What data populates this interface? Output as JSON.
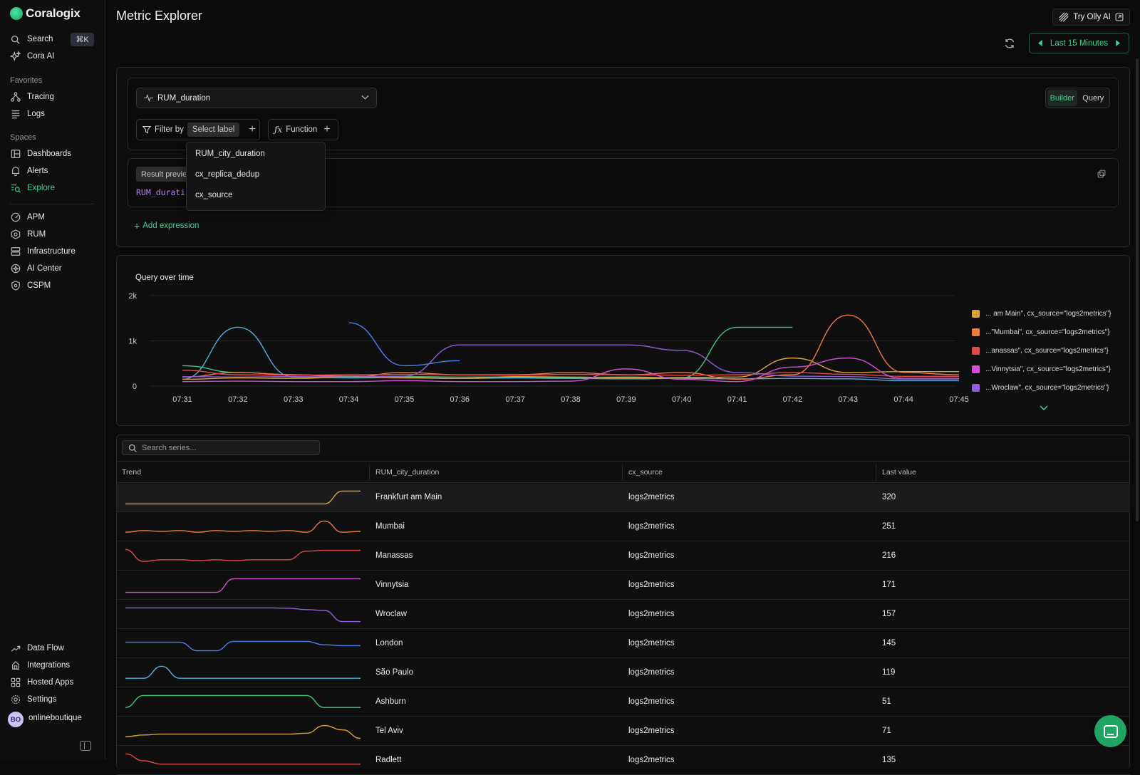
{
  "sidebar": {
    "brand": "Coralogix",
    "search_label": "Search",
    "search_shortcut": "⌘K",
    "cora_label": "Cora AI",
    "favorites_title": "Favorites",
    "favorites": [
      "Tracing",
      "Logs"
    ],
    "spaces_title": "Spaces",
    "spaces": [
      "Dashboards",
      "Alerts",
      "Explore"
    ],
    "products": [
      "APM",
      "RUM",
      "Infrastructure",
      "AI Center",
      "CSPM"
    ],
    "bottom": [
      "Data Flow",
      "Integrations",
      "Hosted Apps",
      "Settings"
    ],
    "avatar_initials": "BO",
    "org_name": "onlineboutique"
  },
  "header": {
    "title": "Metric Explorer",
    "olly_label": "Try Olly AI",
    "time_range": "Last 15 Minutes"
  },
  "query": {
    "metric": "RUM_duration",
    "filter_label": "Filter by",
    "select_label": "Select label",
    "function_label": "Function",
    "builder_label": "Builder",
    "query_label": "Query",
    "result_preview": "Result previe",
    "result_code": "RUM_duratio",
    "add_expression": "Add expression",
    "dropdown_options": [
      "RUM_city_duration",
      "cx_replica_dedup",
      "cx_source"
    ]
  },
  "chart_data": {
    "type": "line",
    "title": "Query over time",
    "x": [
      "07:31",
      "07:32",
      "07:33",
      "07:34",
      "07:35",
      "07:36",
      "07:37",
      "07:38",
      "07:39",
      "07:40",
      "07:41",
      "07:42",
      "07:43",
      "07:44",
      "07:45"
    ],
    "yticks": [
      "2k",
      "1k",
      "0"
    ],
    "ylim": [
      0,
      2000
    ],
    "legend_position": "right",
    "series": [
      {
        "name": "... am Main\", cx_source=\"logs2metrics\"}",
        "color": "#d9a33a",
        "values": [
          150,
          180,
          170,
          200,
          180,
          170,
          210,
          200,
          180,
          190,
          200,
          620,
          300,
          320,
          320
        ]
      },
      {
        "name": "...\"Mumbai\", cx_source=\"logs2metrics\"}",
        "color": "#ee7a3c",
        "values": [
          200,
          300,
          250,
          200,
          300,
          250,
          250,
          300,
          250,
          300,
          150,
          250,
          1570,
          300,
          251
        ]
      },
      {
        "name": "...anassas\", cx_source=\"logs2metrics\"}",
        "color": "#e04a4a",
        "values": [
          350,
          250,
          240,
          250,
          260,
          250,
          240,
          260,
          250,
          240,
          250,
          300,
          260,
          216,
          216
        ]
      },
      {
        "name": "...Vinnytsia\", cx_source=\"logs2metrics\"}",
        "color": "#d24fd8",
        "values": [
          100,
          110,
          100,
          100,
          120,
          100,
          100,
          110,
          380,
          150,
          100,
          420,
          620,
          171,
          171
        ]
      },
      {
        "name": "...Wroclaw\", cx_source=\"logs2metrics\"}",
        "color": "#8f5ed8",
        "values": [
          210,
          200,
          210,
          200,
          220,
          910,
          910,
          910,
          910,
          790,
          300,
          220,
          210,
          157,
          157
        ]
      }
    ],
    "extra_lines": [
      {
        "color": "#4a7ee8",
        "values": [
          null,
          null,
          null,
          1400,
          450,
          560,
          null,
          null,
          null,
          null,
          null,
          null,
          null,
          null,
          null
        ]
      },
      {
        "color": "#4fb3d9",
        "values": [
          150,
          1300,
          200,
          180,
          190,
          170,
          180,
          170,
          160,
          170,
          160,
          170,
          160,
          119,
          119
        ]
      },
      {
        "color": "#3fc77a",
        "values": [
          450,
          300,
          250,
          220,
          210,
          200,
          200,
          190,
          200,
          180,
          1300,
          1300,
          null,
          null,
          null
        ]
      }
    ]
  },
  "table": {
    "search_placeholder": "Search series...",
    "columns": [
      "Trend",
      "RUM_city_duration",
      "cx_source",
      "Last value"
    ],
    "rows": [
      {
        "city": "Frankfurt am Main",
        "source": "logs2metrics",
        "value": "320",
        "color": "#d9a33a",
        "trend": [
          0.15,
          0.15,
          0.15,
          0.15,
          0.15,
          0.15,
          0.15,
          0.15,
          0.15,
          0.15,
          0.15,
          0.15,
          0.9,
          0.9
        ]
      },
      {
        "city": "Mumbai",
        "source": "logs2metrics",
        "value": "251",
        "color": "#ee7a3c",
        "trend": [
          0.2,
          0.3,
          0.25,
          0.3,
          0.2,
          0.3,
          0.25,
          0.3,
          0.25,
          0.3,
          0.2,
          0.85,
          0.2,
          0.25
        ]
      },
      {
        "city": "Manassas",
        "source": "logs2metrics",
        "value": "216",
        "color": "#e04a4a",
        "trend": [
          0.9,
          0.2,
          0.3,
          0.3,
          0.25,
          0.3,
          0.25,
          0.3,
          0.3,
          0.3,
          0.8,
          0.85,
          0.85,
          0.85
        ]
      },
      {
        "city": "Vinnytsia",
        "source": "logs2metrics",
        "value": "171",
        "color": "#d24fd8",
        "trend": [
          0.1,
          0.1,
          0.1,
          0.1,
          0.1,
          0.1,
          0.9,
          0.9,
          0.9,
          0.9,
          0.9,
          0.9,
          0.9,
          0.9
        ]
      },
      {
        "city": "Wroclaw",
        "source": "logs2metrics",
        "value": "157",
        "color": "#8f5ed8",
        "trend": [
          0.9,
          0.9,
          0.9,
          0.9,
          0.9,
          0.9,
          0.9,
          0.9,
          0.9,
          0.88,
          0.8,
          0.75,
          0.1,
          0.1
        ]
      },
      {
        "city": "London",
        "source": "logs2metrics",
        "value": "145",
        "color": "#4a7ee8",
        "trend": [
          0.6,
          0.6,
          0.6,
          0.6,
          0.1,
          0.1,
          0.65,
          0.65,
          0.65,
          0.65,
          0.65,
          0.45,
          0.4,
          0.4
        ]
      },
      {
        "city": "São Paulo",
        "source": "logs2metrics",
        "value": "119",
        "color": "#4fb3d9",
        "trend": [
          0.2,
          0.2,
          0.9,
          0.2,
          0.2,
          0.2,
          0.2,
          0.2,
          0.2,
          0.2,
          0.2,
          0.2,
          0.2,
          0.2
        ]
      },
      {
        "city": "Ashburn",
        "source": "logs2metrics",
        "value": "51",
        "color": "#3fc77a",
        "trend": [
          0.2,
          0.9,
          0.9,
          0.9,
          0.9,
          0.9,
          0.9,
          0.9,
          0.9,
          0.9,
          0.9,
          0.2,
          0.2,
          0.2
        ]
      },
      {
        "city": "Tel Aviv",
        "source": "logs2metrics",
        "value": "71",
        "color": "#d9a33a",
        "trend": [
          0.2,
          0.3,
          0.35,
          0.35,
          0.35,
          0.35,
          0.35,
          0.35,
          0.35,
          0.35,
          0.4,
          0.85,
          0.6,
          0.1
        ]
      },
      {
        "city": "Radlett",
        "source": "logs2metrics",
        "value": "135",
        "color": "#e04a4a",
        "trend": [
          0.9,
          0.5,
          0.3,
          0.3,
          0.3,
          0.3,
          0.3,
          0.3,
          0.3,
          0.3,
          0.3,
          0.3,
          0.3,
          0.3
        ]
      }
    ]
  }
}
